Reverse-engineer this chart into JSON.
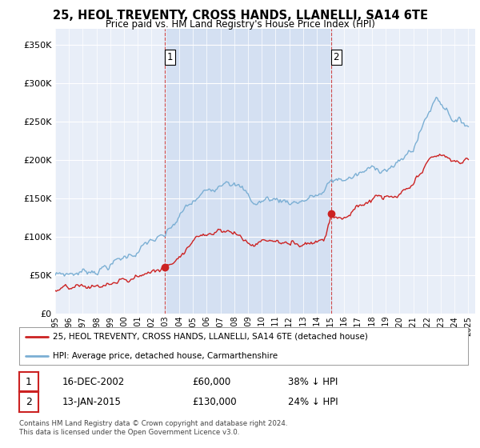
{
  "title": "25, HEOL TREVENTY, CROSS HANDS, LLANELLI, SA14 6TE",
  "subtitle": "Price paid vs. HM Land Registry's House Price Index (HPI)",
  "ylabel_ticks": [
    "£0",
    "£50K",
    "£100K",
    "£150K",
    "£200K",
    "£250K",
    "£300K",
    "£350K"
  ],
  "ytick_values": [
    0,
    50000,
    100000,
    150000,
    200000,
    250000,
    300000,
    350000
  ],
  "ylim": [
    0,
    370000
  ],
  "xlim_start": 1995.0,
  "xlim_end": 2025.5,
  "hpi_color": "#7bafd4",
  "price_color": "#cc2222",
  "sale1_date": 2002.96,
  "sale1_price": 60000,
  "sale2_date": 2015.04,
  "sale2_price": 130000,
  "legend_line1": "25, HEOL TREVENTY, CROSS HANDS, LLANELLI, SA14 6TE (detached house)",
  "legend_line2": "HPI: Average price, detached house, Carmarthenshire",
  "table_row1": [
    "1",
    "16-DEC-2002",
    "£60,000",
    "38% ↓ HPI"
  ],
  "table_row2": [
    "2",
    "13-JAN-2015",
    "£130,000",
    "24% ↓ HPI"
  ],
  "footnote": "Contains HM Land Registry data © Crown copyright and database right 2024.\nThis data is licensed under the Open Government Licence v3.0.",
  "background_color": "#e8eef8",
  "plot_bg_color": "#e8eef8"
}
